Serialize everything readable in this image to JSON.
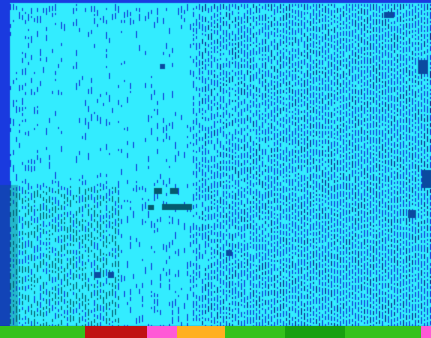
{
  "colors": {
    "background": "#0a1e8a",
    "open_water": "#33ecff",
    "deep": "#1236d8",
    "ink": "#0a1e8a",
    "dark_rock": "#055a6e",
    "blob": "#0a4aa0",
    "edge": "#1a3adf"
  },
  "icons": {
    "face": "face-glyph-icon",
    "dots": "marker-pair-icon"
  },
  "status_bar": {
    "segments": [
      {
        "color": "#34c21c",
        "weight": 85
      },
      {
        "color": "#c01212",
        "weight": 62
      },
      {
        "color": "#ff5ad6",
        "weight": 30
      },
      {
        "color": "#ffb020",
        "weight": 48
      },
      {
        "color": "#34c21c",
        "weight": 60
      },
      {
        "color": "#18a010",
        "weight": 60
      },
      {
        "color": "#34c21c",
        "weight": 76
      },
      {
        "color": "#ff5ad6",
        "weight": 10
      }
    ]
  }
}
